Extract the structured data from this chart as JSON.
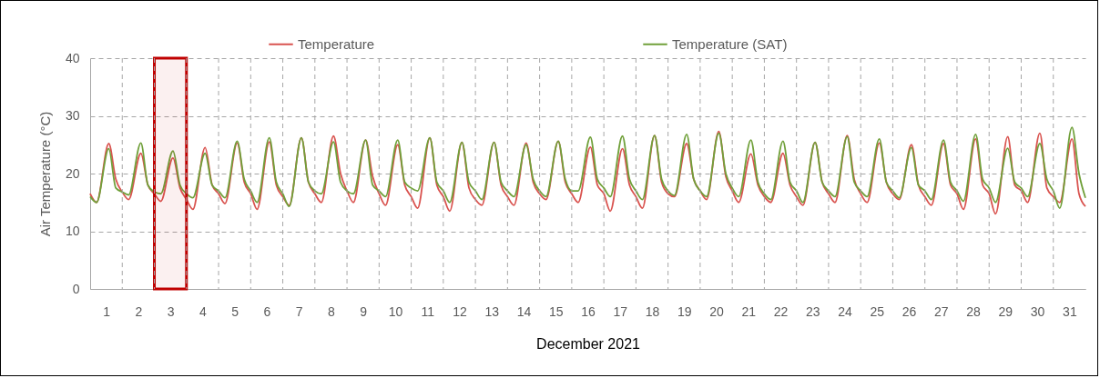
{
  "chart_data": {
    "type": "line",
    "xlabel": "December 2021",
    "ylabel": "Air Temperature (°C)",
    "x": [
      0.5,
      0.7,
      1.08,
      1.3,
      1.5,
      1.7,
      2.08,
      2.3,
      2.5,
      2.7,
      3.08,
      3.3,
      3.5,
      3.7,
      4.08,
      4.3,
      4.5,
      4.7,
      5.08,
      5.3,
      5.5,
      5.7,
      6.08,
      6.3,
      6.5,
      6.7,
      7.08,
      7.3,
      7.5,
      7.7,
      8.08,
      8.3,
      8.5,
      8.7,
      9.08,
      9.3,
      9.5,
      9.7,
      10.08,
      10.3,
      10.5,
      10.7,
      11.08,
      11.3,
      11.5,
      11.7,
      12.08,
      12.3,
      12.5,
      12.7,
      13.08,
      13.3,
      13.5,
      13.7,
      14.08,
      14.3,
      14.5,
      14.7,
      15.08,
      15.3,
      15.5,
      15.7,
      16.08,
      16.3,
      16.5,
      16.7,
      17.08,
      17.3,
      17.5,
      17.7,
      18.08,
      18.3,
      18.5,
      18.7,
      19.08,
      19.3,
      19.5,
      19.7,
      20.08,
      20.3,
      20.5,
      20.7,
      21.08,
      21.3,
      21.5,
      21.7,
      22.08,
      22.3,
      22.5,
      22.7,
      23.08,
      23.3,
      23.5,
      23.7,
      24.08,
      24.3,
      24.5,
      24.7,
      25.08,
      25.3,
      25.5,
      25.7,
      26.08,
      26.3,
      26.5,
      26.7,
      27.08,
      27.3,
      27.5,
      27.7,
      28.08,
      28.3,
      28.5,
      28.7,
      29.08,
      29.3,
      29.5,
      29.7,
      30.08,
      30.3,
      30.5,
      30.7,
      31.08,
      31.3,
      31.5
    ],
    "series": [
      {
        "name": "Temperature",
        "color": "#d9534f",
        "values": [
          16.5,
          15,
          25.2,
          19,
          16.8,
          15.5,
          23.5,
          18,
          16.5,
          15.2,
          22.7,
          17.5,
          15.5,
          13.8,
          24.5,
          18,
          16.5,
          14.8,
          25.3,
          18.5,
          16.5,
          13.8,
          25.5,
          18,
          16,
          14.5,
          26.2,
          18.5,
          16.5,
          15,
          26.5,
          20,
          17,
          15,
          25.8,
          19.5,
          16.5,
          14.5,
          25,
          18,
          16,
          14,
          26.2,
          18,
          16,
          13.5,
          25.4,
          17.5,
          15.5,
          14.5,
          25.4,
          18,
          16,
          14.5,
          25.3,
          18.5,
          16.5,
          15.5,
          25.6,
          18.5,
          16.5,
          15,
          24.6,
          18,
          16.5,
          13.5,
          24.3,
          18,
          16,
          14,
          26.6,
          18.5,
          16.5,
          16,
          25.2,
          19,
          17,
          15.5,
          27.3,
          19.5,
          17,
          15,
          23.4,
          18,
          16,
          15,
          23.5,
          18,
          16,
          14.5,
          25.4,
          18.5,
          16.5,
          15,
          26.6,
          19,
          16.5,
          15,
          25.3,
          18.5,
          16.5,
          15.5,
          25,
          18,
          16,
          14.5,
          25.2,
          18,
          16.5,
          13.8,
          26,
          18,
          16.5,
          13,
          26.4,
          18,
          17,
          15,
          27,
          17.5,
          16,
          15,
          26,
          16.5,
          14.3
        ]
      },
      {
        "name": "Temperature (SAT)",
        "color": "#70a03a",
        "values": [
          16,
          15,
          24.3,
          17.5,
          16.8,
          16.3,
          25.3,
          18,
          16.8,
          16.5,
          23.9,
          18,
          16.5,
          15.8,
          23.5,
          18,
          17,
          15.8,
          25.6,
          19,
          17,
          15,
          26.2,
          18.5,
          16.5,
          14.3,
          26.2,
          18.5,
          17,
          16.5,
          25.5,
          18.5,
          17,
          16.5,
          25.8,
          18,
          17,
          16,
          25.8,
          18.5,
          17.5,
          17,
          26.2,
          18.5,
          17,
          15,
          25.4,
          18.5,
          17,
          15.5,
          25.4,
          18.5,
          17,
          16,
          25,
          19,
          17,
          16,
          25.6,
          19,
          17,
          17,
          26.3,
          19,
          17.5,
          16,
          26.5,
          19,
          17,
          15.5,
          26.6,
          19,
          17,
          16.2,
          26.8,
          19,
          17,
          16,
          27,
          20,
          17.5,
          16,
          25.8,
          18.5,
          16.5,
          15.5,
          25.6,
          18.5,
          17,
          15,
          25.4,
          18.5,
          17,
          16,
          26.4,
          18.5,
          17,
          16,
          26,
          18.5,
          17,
          15.8,
          24.5,
          18,
          17,
          15.5,
          25.8,
          18.5,
          17,
          15.2,
          26.8,
          19,
          17.5,
          15,
          24.4,
          18.5,
          17.5,
          16,
          25.2,
          19,
          17,
          14,
          28,
          20,
          15.8
        ]
      }
    ],
    "xlim": [
      0.5,
      31.5
    ],
    "xticks": [
      1,
      2,
      3,
      4,
      5,
      6,
      7,
      8,
      9,
      10,
      11,
      12,
      13,
      14,
      15,
      16,
      17,
      18,
      19,
      20,
      21,
      22,
      23,
      24,
      25,
      26,
      27,
      28,
      29,
      30,
      31,
      {
        "value": 1.5,
        "label": null
      },
      {
        "value": 2.5,
        "label": null
      },
      {
        "value": 3.5,
        "label": null
      },
      {
        "value": 4.5,
        "label": null
      },
      {
        "value": 5.5,
        "label": null
      },
      {
        "value": 6.5,
        "label": null
      },
      {
        "value": 7.5,
        "label": null
      },
      {
        "value": 8.5,
        "label": null
      },
      {
        "value": 9.5,
        "label": null
      },
      {
        "value": 10.5,
        "label": null
      },
      {
        "value": 11.5,
        "label": null
      },
      {
        "value": 12.5,
        "label": null
      },
      {
        "value": 13.5,
        "label": null
      },
      {
        "value": 14.5,
        "label": null
      },
      {
        "value": 15.5,
        "label": null
      },
      {
        "value": 16.5,
        "label": null
      },
      {
        "value": 17.5,
        "label": null
      },
      {
        "value": 18.5,
        "label": null
      },
      {
        "value": 19.5,
        "label": null
      },
      {
        "value": 20.5,
        "label": null
      },
      {
        "value": 21.5,
        "label": null
      },
      {
        "value": 22.5,
        "label": null
      },
      {
        "value": 23.5,
        "label": null
      },
      {
        "value": 24.5,
        "label": null
      },
      {
        "value": 25.5,
        "label": null
      },
      {
        "value": 26.5,
        "label": null
      },
      {
        "value": 27.5,
        "label": null
      },
      {
        "value": 28.5,
        "label": null
      },
      {
        "value": 29.5,
        "label": null
      },
      {
        "value": 30.5,
        "label": null
      }
    ],
    "ylim": [
      0,
      40
    ],
    "yticks": [
      0,
      10,
      20,
      30,
      40
    ],
    "bands": [
      {
        "axis": "x",
        "from": 2.5,
        "to": 3.5,
        "color": "#c00000"
      }
    ],
    "grid": true,
    "legend": "top",
    "marker": "none",
    "line_style": "solid"
  }
}
